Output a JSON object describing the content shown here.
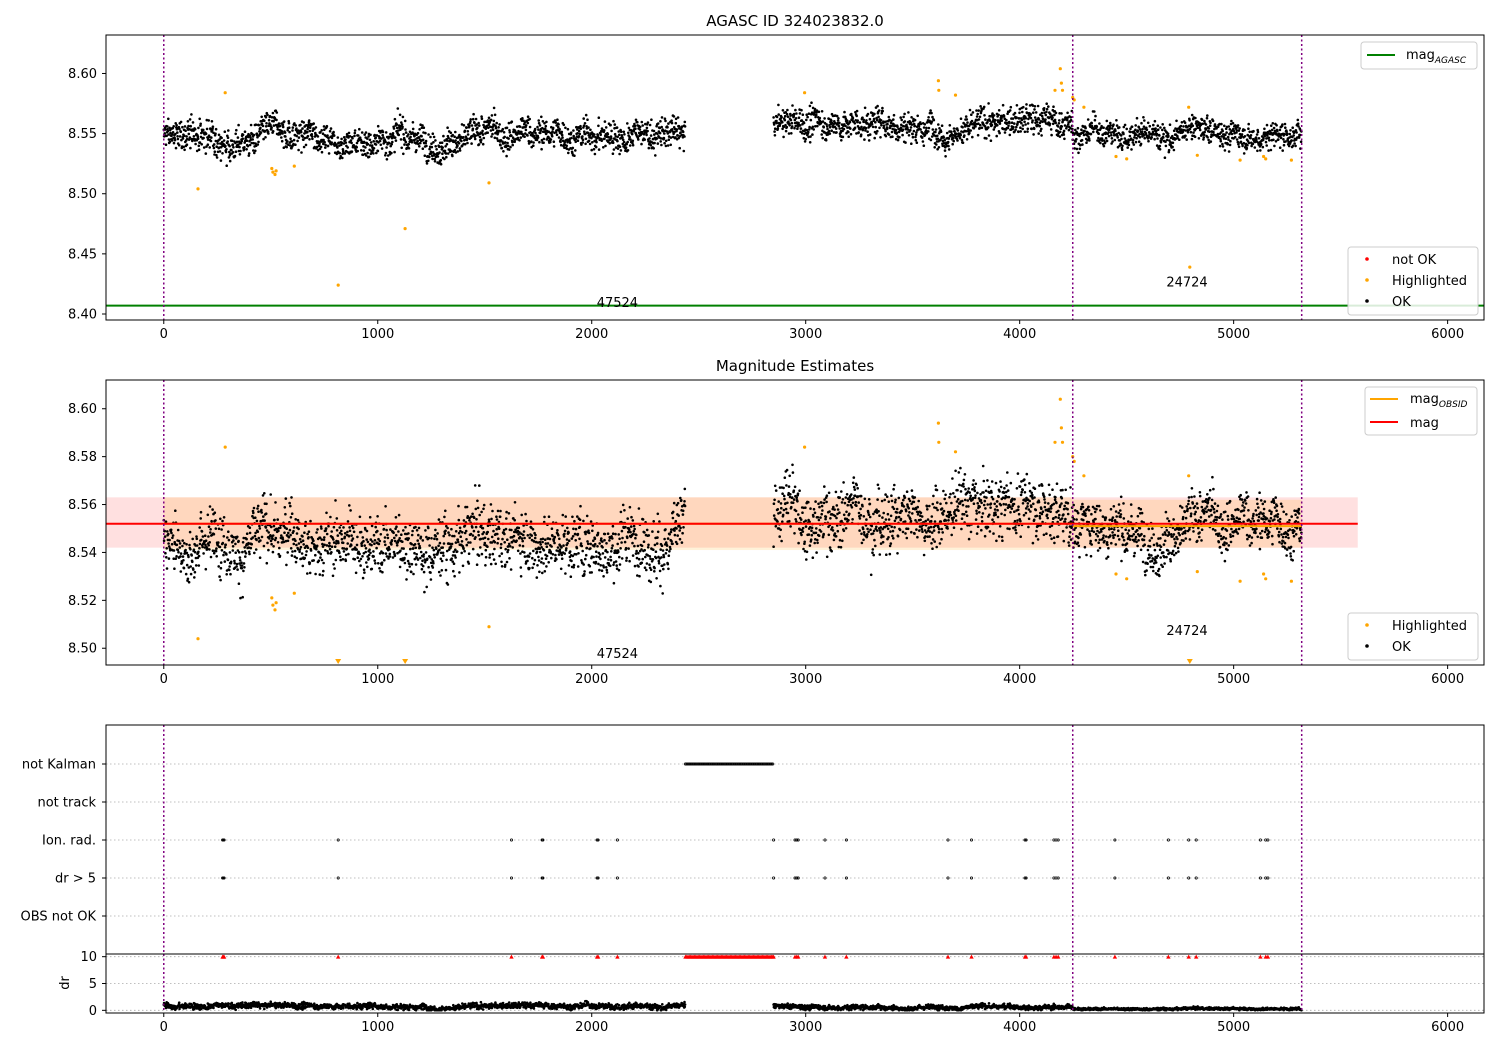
{
  "chart_data": [
    {
      "type": "scatter",
      "title": "AGASC ID 324023832.0",
      "xlim": [
        -270,
        6170
      ],
      "ylim": [
        8.395,
        8.632
      ],
      "xticks": [
        "0",
        "1000",
        "2000",
        "3000",
        "4000",
        "5000",
        "6000"
      ],
      "xtick_values": [
        0,
        1000,
        2000,
        3000,
        4000,
        5000,
        6000
      ],
      "yticks": [
        "8.40",
        "8.45",
        "8.50",
        "8.55",
        "8.60"
      ],
      "ytick_values": [
        8.4,
        8.45,
        8.5,
        8.55,
        8.6
      ],
      "reference_lines": [
        {
          "name": "mag_AGASC",
          "label": "mag",
          "subscript": "AGASC",
          "y": 8.407,
          "color": "#008000"
        }
      ],
      "vlines": [
        0,
        4248,
        5318
      ],
      "annotations": [
        {
          "text": "47524",
          "x": 2120,
          "y": 8.406
        },
        {
          "text": "24724",
          "x": 4782,
          "y": 8.423
        }
      ],
      "series_segments": [
        {
          "x_start": 0,
          "x_end": 2438,
          "center": 8.548,
          "spread": 0.008
        },
        {
          "x_start": 2850,
          "x_end": 4248,
          "center": 8.559,
          "spread": 0.008
        },
        {
          "x_start": 4248,
          "x_end": 5318,
          "center": 8.551,
          "spread": 0.007
        }
      ],
      "highlighted_points": [
        [
          160,
          8.504
        ],
        [
          287,
          8.584
        ],
        [
          505,
          8.521
        ],
        [
          510,
          8.518
        ],
        [
          520,
          8.516
        ],
        [
          525,
          8.519
        ],
        [
          610,
          8.523
        ],
        [
          815,
          8.424
        ],
        [
          1128,
          8.471
        ],
        [
          1520,
          8.509
        ],
        [
          2995,
          8.584
        ],
        [
          3620,
          8.594
        ],
        [
          3622,
          8.586
        ],
        [
          3700,
          8.582
        ],
        [
          4165,
          8.586
        ],
        [
          4190,
          8.604
        ],
        [
          4195,
          8.592
        ],
        [
          4200,
          8.586
        ],
        [
          4248,
          8.58
        ],
        [
          4255,
          8.578
        ],
        [
          4300,
          8.572
        ],
        [
          4450,
          8.531
        ],
        [
          4500,
          8.529
        ],
        [
          4790,
          8.572
        ],
        [
          4795,
          8.439
        ],
        [
          4830,
          8.532
        ],
        [
          5030,
          8.528
        ],
        [
          5140,
          8.531
        ],
        [
          5150,
          8.529
        ],
        [
          5270,
          8.528
        ]
      ],
      "legend": {
        "items": [
          "not OK",
          "Highlighted",
          "OK"
        ],
        "colors": [
          "#ff0000",
          "#ffa500",
          "#000000"
        ]
      }
    },
    {
      "type": "scatter",
      "title": "Magnitude Estimates",
      "xlim": [
        -270,
        6170
      ],
      "ylim": [
        8.493,
        8.612
      ],
      "xticks": [
        "0",
        "1000",
        "2000",
        "3000",
        "4000",
        "5000",
        "6000"
      ],
      "xtick_values": [
        0,
        1000,
        2000,
        3000,
        4000,
        5000,
        6000
      ],
      "yticks": [
        "8.50",
        "8.52",
        "8.54",
        "8.56",
        "8.58",
        "8.60"
      ],
      "ytick_values": [
        8.5,
        8.52,
        8.54,
        8.56,
        8.58,
        8.6
      ],
      "vlines": [
        0,
        4248,
        5318
      ],
      "mag": {
        "value": 8.552,
        "band": [
          8.542,
          8.563
        ],
        "x_range": [
          -270,
          5580
        ],
        "color": "#ff0000"
      },
      "mag_obsid": [
        {
          "x_range": [
            0,
            4248
          ],
          "value": 8.552,
          "band": [
            8.541,
            8.563
          ],
          "color": "#ffa500"
        },
        {
          "x_range": [
            4248,
            5318
          ],
          "value": 8.551,
          "band": [
            8.542,
            8.562
          ],
          "color": "#ffa500"
        }
      ],
      "annotations": [
        {
          "text": "47524",
          "x": 2120,
          "y": 8.496
        },
        {
          "text": "24724",
          "x": 4782,
          "y": 8.5055
        }
      ],
      "series_segments": [
        {
          "x_start": 0,
          "x_end": 2438,
          "center": 8.548,
          "spread": 0.008
        },
        {
          "x_start": 2850,
          "x_end": 4248,
          "center": 8.559,
          "spread": 0.008
        },
        {
          "x_start": 4248,
          "x_end": 5318,
          "center": 8.551,
          "spread": 0.007
        }
      ],
      "highlighted_points": [
        [
          160,
          8.504
        ],
        [
          287,
          8.584
        ],
        [
          505,
          8.521
        ],
        [
          510,
          8.518
        ],
        [
          520,
          8.516
        ],
        [
          525,
          8.519
        ],
        [
          610,
          8.523
        ],
        [
          1520,
          8.509
        ],
        [
          2995,
          8.584
        ],
        [
          3620,
          8.594
        ],
        [
          3622,
          8.586
        ],
        [
          3700,
          8.582
        ],
        [
          4165,
          8.586
        ],
        [
          4190,
          8.604
        ],
        [
          4195,
          8.592
        ],
        [
          4200,
          8.586
        ],
        [
          4248,
          8.58
        ],
        [
          4255,
          8.578
        ],
        [
          4300,
          8.572
        ],
        [
          4450,
          8.531
        ],
        [
          4500,
          8.529
        ],
        [
          4790,
          8.572
        ],
        [
          4830,
          8.532
        ],
        [
          5030,
          8.528
        ],
        [
          5140,
          8.531
        ],
        [
          5150,
          8.529
        ],
        [
          5270,
          8.528
        ]
      ],
      "out_of_range_markers": [
        815,
        1128,
        4795
      ],
      "legend": {
        "items": [
          "mag",
          "mag",
          "Highlighted",
          "OK"
        ],
        "subscripts": [
          "OBSID",
          ""
        ],
        "colors": [
          "#ffa500",
          "#ff0000",
          "#ffa500",
          "#000000"
        ]
      }
    },
    {
      "type": "scatter",
      "title": "",
      "categories": [
        "not Kalman",
        "not track",
        "Ion. rad.",
        "dr > 5",
        "OBS not OK"
      ],
      "xlim": [
        -270,
        6170
      ],
      "vlines": [
        0,
        4248,
        5318
      ],
      "not_kalman_range": [
        2438,
        2850
      ],
      "flag_x": [
        275,
        278,
        282,
        815,
        1625,
        1768,
        1772,
        2025,
        2030,
        2120,
        2850,
        2950,
        2958,
        2965,
        3090,
        3190,
        3665,
        3775,
        4025,
        4030,
        4160,
        4170,
        4180,
        4445,
        4695,
        4790,
        4825,
        5125,
        5150,
        5160
      ]
    },
    {
      "type": "scatter",
      "title": "",
      "ylabel": "dr",
      "xlim": [
        -270,
        6170
      ],
      "ylim": [
        -0.5,
        10.5
      ],
      "xticks": [
        "0",
        "1000",
        "2000",
        "3000",
        "4000",
        "5000",
        "6000"
      ],
      "xtick_values": [
        0,
        1000,
        2000,
        3000,
        4000,
        5000,
        6000
      ],
      "yticks": [
        "0",
        "5",
        "10"
      ],
      "ytick_values": [
        0,
        5,
        10
      ],
      "vlines": [
        0,
        4248,
        5318
      ],
      "clipped_value": 10,
      "series_segments": [
        {
          "x_start": 0,
          "x_end": 2438,
          "center": 0.8,
          "spread": 0.35
        },
        {
          "x_start": 2850,
          "x_end": 4248,
          "center": 0.7,
          "spread": 0.3
        },
        {
          "x_start": 4248,
          "x_end": 5318,
          "center": 0.35,
          "spread": 0.15
        }
      ]
    }
  ]
}
